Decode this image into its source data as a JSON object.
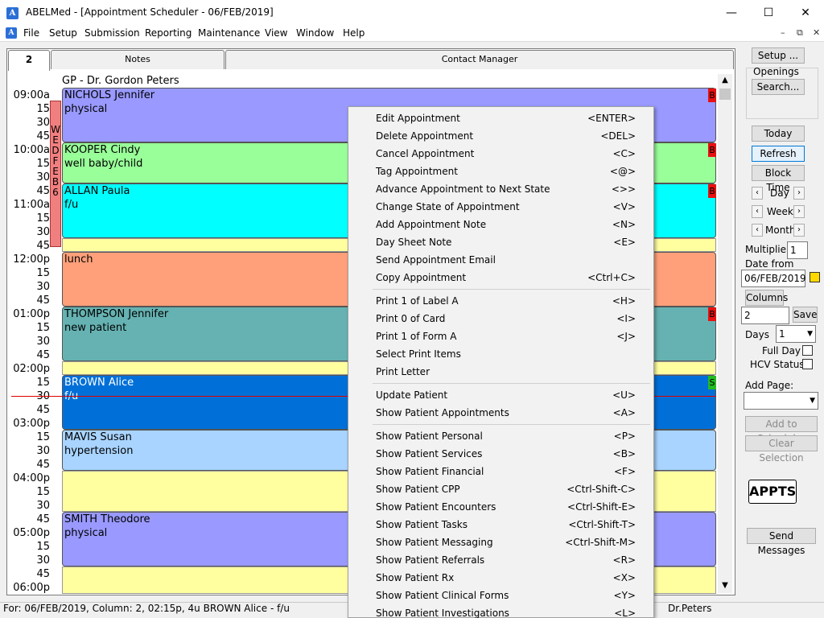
{
  "window": {
    "app_icon": "A",
    "title": "ABELMed - [Appointment Scheduler - 06/FEB/2019]",
    "controls": {
      "minimize": "—",
      "maximize": "☐",
      "close": "✕"
    }
  },
  "menubar": {
    "items": [
      "File",
      "Setup",
      "Submission",
      "Reporting",
      "Maintenance",
      "View",
      "Window",
      "Help"
    ],
    "mdi_controls": {
      "minimize": "–",
      "restore": "⧉",
      "close": "✕"
    }
  },
  "tabs": [
    "2",
    "Notes",
    "Contact Manager"
  ],
  "schedule": {
    "column_header": "GP - Dr. Gordon Peters",
    "times": [
      "09:00a",
      "15",
      "30",
      "45",
      "10:00a",
      "15",
      "30",
      "45",
      "11:00a",
      "15",
      "30",
      "45",
      "12:00p",
      "15",
      "30",
      "45",
      "01:00p",
      "15",
      "30",
      "45",
      "02:00p",
      "15",
      "30",
      "45",
      "03:00p",
      "15",
      "30",
      "45",
      "04:00p",
      "15",
      "30",
      "45",
      "05:00p",
      "15",
      "30",
      "45",
      "06:00p"
    ],
    "day_marker": [
      "W",
      "E",
      "D",
      "F",
      "E",
      "B",
      "6"
    ],
    "appointments": [
      {
        "name": "NICHOLS Jennifer",
        "note": "physical",
        "color": "#9999ff",
        "flag": "B",
        "flag_color": "#e81010"
      },
      {
        "name": "KOOPER Cindy",
        "note": "well baby/child",
        "color": "#99ff99",
        "flag": "B",
        "flag_color": "#e81010"
      },
      {
        "name": "ALLAN Paula",
        "note": "f/u",
        "color": "#00ffff",
        "flag": "B",
        "flag_color": "#e81010"
      },
      {
        "name": "lunch",
        "note": "",
        "color": "#ffa07a",
        "flag": "",
        "flag_color": ""
      },
      {
        "name": "THOMPSON Jennifer",
        "note": "new patient",
        "color": "#66b2b2",
        "flag": "B",
        "flag_color": "#e81010"
      },
      {
        "name": "BROWN Alice",
        "note": "f/u",
        "color": "#0070d8",
        "flag": "S",
        "flag_color": "#22bb22"
      },
      {
        "name": "MAVIS Susan",
        "note": "hypertension",
        "color": "#a8d4ff",
        "flag": "",
        "flag_color": ""
      },
      {
        "name": "SMITH Theodore",
        "note": "physical",
        "color": "#9999ff",
        "flag": "",
        "flag_color": ""
      }
    ]
  },
  "context_menu": {
    "groups": [
      [
        {
          "label": "Edit Appointment",
          "key": "<ENTER>"
        },
        {
          "label": "Delete Appointment",
          "key": "<DEL>"
        },
        {
          "label": "Cancel Appointment",
          "key": "<C>"
        },
        {
          "label": "Tag Appointment",
          "key": "<@>"
        },
        {
          "label": "Advance Appointment to Next State",
          "key": "<>>"
        },
        {
          "label": "Change State of Appointment",
          "key": "<V>"
        },
        {
          "label": "Add Appointment Note",
          "key": "<N>"
        },
        {
          "label": "Day Sheet Note",
          "key": "<E>"
        },
        {
          "label": "Send Appointment Email",
          "key": ""
        },
        {
          "label": "Copy Appointment",
          "key": "<Ctrl+C>"
        }
      ],
      [
        {
          "label": "Print 1 of Label A",
          "key": "<H>"
        },
        {
          "label": "Print 0 of Card",
          "key": "<I>"
        },
        {
          "label": "Print 1 of Form A",
          "key": "<J>"
        },
        {
          "label": "Select Print Items",
          "key": ""
        },
        {
          "label": "Print Letter",
          "key": ""
        }
      ],
      [
        {
          "label": "Update Patient",
          "key": "<U>"
        },
        {
          "label": "Show Patient Appointments",
          "key": "<A>"
        }
      ],
      [
        {
          "label": "Show Patient Personal",
          "key": "<P>"
        },
        {
          "label": "Show Patient Services",
          "key": "<B>"
        },
        {
          "label": "Show Patient Financial",
          "key": "<F>"
        },
        {
          "label": "Show Patient CPP",
          "key": "<Ctrl-Shift-C>"
        },
        {
          "label": "Show Patient Encounters",
          "key": "<Ctrl-Shift-E>"
        },
        {
          "label": "Show Patient Tasks",
          "key": "<Ctrl-Shift-T>"
        },
        {
          "label": "Show Patient Messaging",
          "key": "<Ctrl-Shift-M>"
        },
        {
          "label": "Show Patient Referrals",
          "key": "<R>"
        },
        {
          "label": "Show Patient Rx",
          "key": "<X>"
        },
        {
          "label": "Show Patient Clinical Forms",
          "key": "<Y>"
        },
        {
          "label": "Show Patient Investigations",
          "key": "<L>"
        }
      ]
    ]
  },
  "sidebar": {
    "setup": "Setup ...",
    "openings_label": "Openings",
    "search": "Search...",
    "today": "Today",
    "refresh": "Refresh",
    "block_time": "Block Time",
    "day": "Day",
    "week": "Week",
    "month": "Month",
    "multiplier_label": "Multiplier",
    "multiplier_value": "1",
    "date_from_label": "Date from",
    "date_from_value": "06/FEB/2019",
    "columns": "Columns",
    "columns_value": "2",
    "save": "Save",
    "days_label": "Days",
    "days_value": "1",
    "full_day": "Full Day",
    "hcv_status": "HCV Status",
    "add_page": "Add Page:",
    "add_to_scheduler": "Add to Scheduler",
    "clear_selection": "Clear Selection",
    "logo": "APPTS",
    "send_messages": "Send Messages"
  },
  "status": {
    "left": "For: 06/FEB/2019, Column: 2, 02:15p, 4u BROWN Alice   - f/u",
    "right": "Dr.Peters"
  }
}
